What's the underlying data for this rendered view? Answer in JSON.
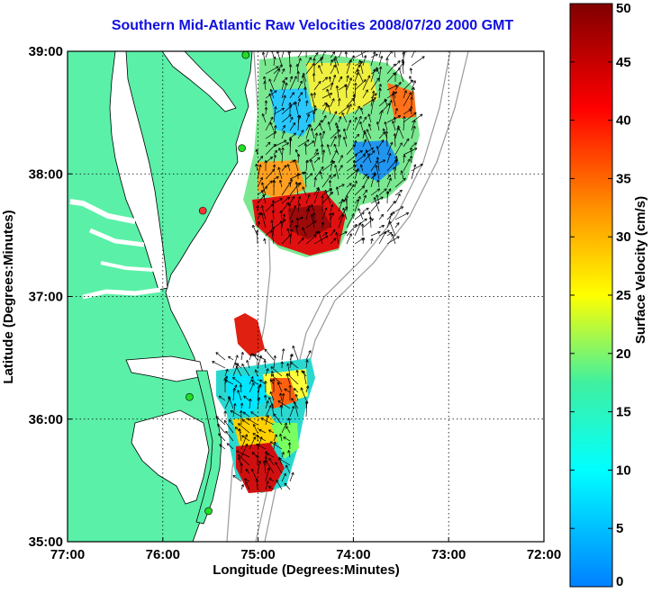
{
  "title": "Southern Mid-Atlantic Raw Velocities 2008/07/20 2000 GMT",
  "map": {
    "xlabel": "Longitude (Degrees:Minutes)",
    "ylabel": "Latitude (Degrees:Minutes)",
    "lon_range": [
      -77,
      -72
    ],
    "lat_range": [
      35,
      39
    ],
    "xticks": [
      {
        "lon": -77,
        "label": "77:00"
      },
      {
        "lon": -76,
        "label": "76:00"
      },
      {
        "lon": -75,
        "label": "75:00"
      },
      {
        "lon": -74,
        "label": "74:00"
      },
      {
        "lon": -73,
        "label": "73:00"
      },
      {
        "lon": -72,
        "label": "72:00"
      }
    ],
    "yticks": [
      {
        "lat": 39,
        "label": "39:00"
      },
      {
        "lat": 38,
        "label": "38:00"
      },
      {
        "lat": 37,
        "label": "37:00"
      },
      {
        "lat": 36,
        "label": "36:00"
      },
      {
        "lat": 35,
        "label": "35:00"
      }
    ],
    "stations": [
      {
        "lon": -75.13,
        "lat": 38.97,
        "color": "#22dd22"
      },
      {
        "lon": -75.17,
        "lat": 38.21,
        "color": "#22dd22"
      },
      {
        "lon": -75.58,
        "lat": 37.7,
        "color": "#ff3333"
      },
      {
        "lon": -75.72,
        "lat": 36.18,
        "color": "#22dd22"
      },
      {
        "lon": -75.52,
        "lat": 35.25,
        "color": "#22dd22"
      }
    ]
  },
  "colorbar": {
    "label": "Surface Velocity (cm/s)",
    "min": 0,
    "max": 50,
    "ticks": [
      {
        "value": 0,
        "label": "0"
      },
      {
        "value": 5,
        "label": "5"
      },
      {
        "value": 10,
        "label": "10"
      },
      {
        "value": 15,
        "label": "15"
      },
      {
        "value": 20,
        "label": "20"
      },
      {
        "value": 25,
        "label": "25"
      },
      {
        "value": 30,
        "label": "30"
      },
      {
        "value": 35,
        "label": "35"
      },
      {
        "value": 40,
        "label": "40"
      },
      {
        "value": 45,
        "label": "45"
      },
      {
        "value": 50,
        "label": "50"
      }
    ]
  }
}
